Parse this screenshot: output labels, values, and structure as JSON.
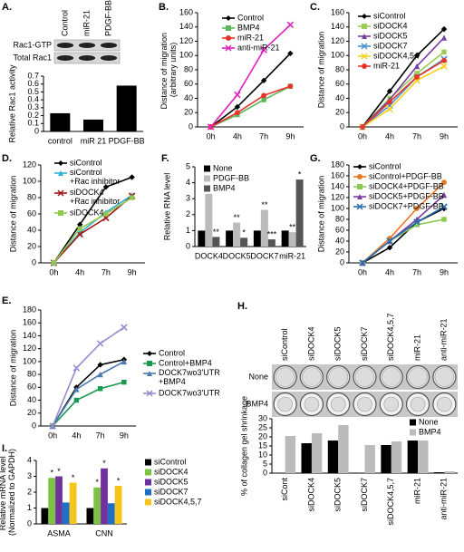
{
  "chart_data": [
    {
      "panel": "A.",
      "type": "bar",
      "ylabel": "Relative Rac1 activity",
      "categories": [
        "control",
        "miR 21",
        "PDGF-BB"
      ],
      "values": [
        0.23,
        0.15,
        0.58
      ],
      "color": "#000000",
      "ylim": [
        0,
        0.7
      ],
      "yticks": [
        0,
        0.1,
        0.2,
        0.3,
        0.4,
        0.5,
        0.6,
        0.7
      ],
      "blot_rows": [
        "Rac1-GTP",
        "Total Rac1"
      ],
      "blot_columns": [
        "Control",
        "miR-21",
        "PDGF-BB"
      ]
    },
    {
      "panel": "B.",
      "type": "line",
      "ylabel": "Distance of migration (arbitrary units)",
      "categories": [
        "0h",
        "4h",
        "7h",
        "9h"
      ],
      "ylim": [
        0,
        160
      ],
      "yticks": [
        0,
        20,
        40,
        60,
        80,
        100,
        120,
        140,
        160
      ],
      "series": [
        {
          "name": "Control",
          "color": "#000000",
          "marker": "diamond",
          "values": [
            0,
            28,
            65,
            103
          ]
        },
        {
          "name": "BMP4",
          "color": "#5cb85c",
          "marker": "square",
          "values": [
            0,
            17,
            38,
            57
          ]
        },
        {
          "name": "miR-21",
          "color": "#e8332a",
          "marker": "circle",
          "values": [
            0,
            20,
            44,
            57
          ]
        },
        {
          "name": "anti-miR-21",
          "color": "#e020c0",
          "marker": "x",
          "values": [
            0,
            45,
            108,
            143
          ]
        }
      ]
    },
    {
      "panel": "C.",
      "type": "line",
      "ylabel": "Distance of migration",
      "categories": [
        "0h",
        "4h",
        "7h",
        "9h"
      ],
      "ylim": [
        0,
        160
      ],
      "yticks": [
        0,
        20,
        40,
        60,
        80,
        100,
        120,
        140,
        160
      ],
      "series": [
        {
          "name": "siControl",
          "color": "#000000",
          "marker": "diamond",
          "values": [
            0,
            50,
            100,
            137
          ]
        },
        {
          "name": "siDOCK4",
          "color": "#9acd50",
          "marker": "square",
          "values": [
            0,
            40,
            75,
            105
          ]
        },
        {
          "name": "siDOCK5",
          "color": "#7b3fa0",
          "marker": "triangle",
          "values": [
            0,
            38,
            85,
            125
          ]
        },
        {
          "name": "siDOCK7",
          "color": "#4a90d0",
          "marker": "x",
          "values": [
            0,
            30,
            70,
            95
          ]
        },
        {
          "name": "siDOCK4,5,7",
          "color": "#f5d020",
          "marker": "x",
          "values": [
            0,
            25,
            65,
            85
          ]
        },
        {
          "name": "miR-21",
          "color": "#e8332a",
          "marker": "circle",
          "values": [
            0,
            35,
            70,
            93
          ]
        }
      ]
    },
    {
      "panel": "D.",
      "type": "line",
      "ylabel": "Distance of migration",
      "categories": [
        "0h",
        "4h",
        "7h",
        "9h"
      ],
      "ylim": [
        0,
        120
      ],
      "yticks": [
        0,
        20,
        40,
        60,
        80,
        100,
        120
      ],
      "series": [
        {
          "name": "siControl",
          "color": "#000000",
          "marker": "diamond",
          "values": [
            0,
            47,
            93,
            105
          ]
        },
        {
          "name": "siControl +Rac inhibitor",
          "color": "#33b0d0",
          "marker": "triangle",
          "values": [
            0,
            37,
            62,
            83
          ]
        },
        {
          "name": "siDOCK4 +Rac inhibitor",
          "color": "#a01818",
          "marker": "x",
          "values": [
            0,
            35,
            55,
            82
          ]
        },
        {
          "name": "siDOCK4",
          "color": "#90c850",
          "marker": "square",
          "values": [
            0,
            42,
            60,
            80
          ]
        }
      ]
    },
    {
      "panel": "F.",
      "type": "bar",
      "ylabel": "Relative RNA level",
      "categories": [
        "DOCK4",
        "DOCK5",
        "DOCK7",
        "miR-21"
      ],
      "ylim": [
        0,
        5
      ],
      "yticks": [
        0,
        1,
        2,
        3,
        4,
        5
      ],
      "series": [
        {
          "name": "None",
          "color": "#000000",
          "values": [
            1,
            1,
            1,
            1
          ]
        },
        {
          "name": "PDGF-BB",
          "color": "#bbbbbb",
          "values": [
            3.3,
            1.5,
            2.3,
            0.9
          ],
          "annotations": [
            "*",
            "**",
            "**",
            "**"
          ]
        },
        {
          "name": "BMP4",
          "color": "#555555",
          "values": [
            0.6,
            0.55,
            0.45,
            4.2
          ],
          "annotations": [
            "**",
            "*",
            "***",
            "*"
          ]
        }
      ]
    },
    {
      "panel": "G.",
      "type": "line",
      "ylabel": "Distance of migration",
      "categories": [
        "0h",
        "4h",
        "7h",
        "9h"
      ],
      "ylim": [
        0,
        180
      ],
      "yticks": [
        0,
        20,
        40,
        60,
        80,
        100,
        120,
        140,
        160,
        180
      ],
      "series": [
        {
          "name": "siControl",
          "color": "#000000",
          "marker": "diamond",
          "values": [
            0,
            28,
            75,
            100
          ]
        },
        {
          "name": "siControl+PDGF-BB",
          "color": "#e87722",
          "marker": "circle",
          "values": [
            0,
            45,
            100,
            148
          ]
        },
        {
          "name": "siDOCK4+PDGF-BB",
          "color": "#8cc850",
          "marker": "square",
          "values": [
            0,
            40,
            70,
            80
          ]
        },
        {
          "name": "siDOCK5+PDGF-BB",
          "color": "#7b3fa0",
          "marker": "triangle",
          "values": [
            0,
            40,
            80,
            125
          ]
        },
        {
          "name": "siDOCK7+PDGF-BB",
          "color": "#2a70b0",
          "marker": "x",
          "values": [
            0,
            40,
            75,
            103
          ]
        }
      ]
    },
    {
      "panel": "E.",
      "type": "line",
      "ylabel": "Distance of migration",
      "categories": [
        "0h",
        "4h",
        "7h",
        "9h"
      ],
      "ylim": [
        0,
        180
      ],
      "yticks": [
        0,
        20,
        40,
        60,
        80,
        100,
        120,
        140,
        160,
        180
      ],
      "series": [
        {
          "name": "Control",
          "color": "#000000",
          "marker": "diamond",
          "values": [
            0,
            60,
            95,
            103
          ]
        },
        {
          "name": "Control+BMP4",
          "color": "#1a9a50",
          "marker": "square",
          "values": [
            0,
            40,
            58,
            68
          ]
        },
        {
          "name": "DOCK7wo3'UTR +BMP4",
          "color": "#4a7ab0",
          "marker": "triangle",
          "values": [
            0,
            57,
            80,
            100
          ]
        },
        {
          "name": "DOCK7wo3'UTR",
          "color": "#9a8ad0",
          "marker": "x",
          "values": [
            0,
            90,
            128,
            153
          ]
        }
      ]
    },
    {
      "panel": "H.",
      "type": "bar",
      "ylabel": "% of collagen gel shrinkage",
      "categories": [
        "siCont",
        "siDOCK4",
        "siDOCK5",
        "siDOCK7",
        "siDOCK4,5,7",
        "miR-21",
        "anti-miR-21"
      ],
      "ylim": [
        0,
        30
      ],
      "yticks": [
        0,
        5,
        10,
        15,
        20,
        25,
        30
      ],
      "series": [
        {
          "name": "None",
          "color": "#000000",
          "values": [
            0,
            16.5,
            18,
            0,
            15.5,
            18,
            0.5
          ]
        },
        {
          "name": "BMP4",
          "color": "#bbbbbb",
          "values": [
            20.5,
            22,
            26.5,
            15.5,
            17.5,
            18,
            1
          ]
        }
      ],
      "image_columns": [
        "siControl",
        "siDOCK4",
        "siDOCK5",
        "siDOCK7",
        "siDOCK4,5,7",
        "miR-21",
        "anti-miR-21"
      ],
      "image_rows": [
        "None",
        "BMP4"
      ]
    },
    {
      "panel": "I.",
      "type": "bar",
      "ylabel": "Relative mRNA level (Normalized to GAPDH)",
      "categories": [
        "ASMA",
        "CNN"
      ],
      "ylim": [
        0,
        4
      ],
      "yticks": [
        0,
        1,
        2,
        3,
        4
      ],
      "series": [
        {
          "name": "siControl",
          "color": "#000000",
          "values": [
            1,
            1
          ]
        },
        {
          "name": "siDOCK4",
          "color": "#7dc242",
          "values": [
            2.9,
            2.3
          ],
          "annotations": [
            "*",
            "*"
          ]
        },
        {
          "name": "siDOCK5",
          "color": "#7030a0",
          "values": [
            3.0,
            3.5
          ],
          "annotations": [
            "*",
            "*"
          ]
        },
        {
          "name": "siDOCK7",
          "color": "#1f6fc5",
          "values": [
            1.35,
            1.3
          ]
        },
        {
          "name": "siDOCK4,5,7",
          "color": "#f5c518",
          "values": [
            2.6,
            2.4
          ],
          "annotations": [
            "*",
            "*"
          ]
        }
      ]
    }
  ]
}
